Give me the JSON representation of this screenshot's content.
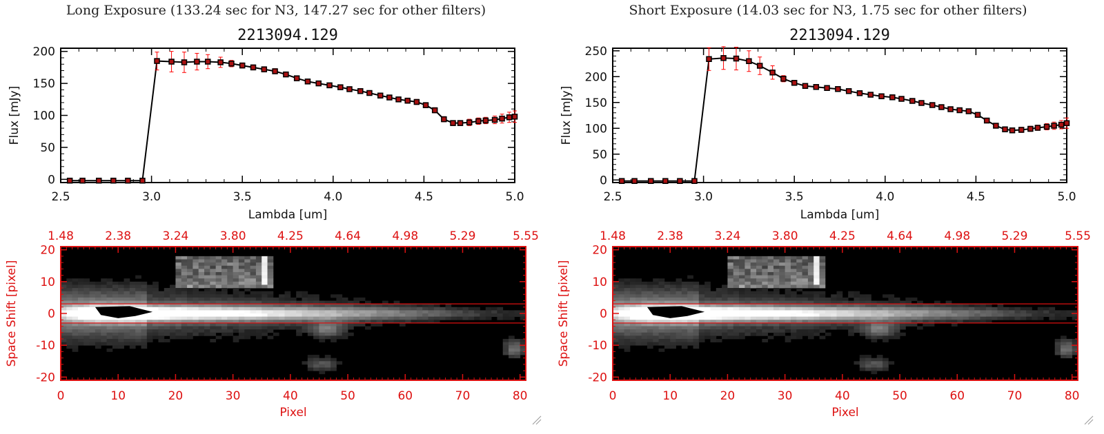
{
  "panels": [
    {
      "exposure_title": "Long Exposure (133.24 sec for N3, 147.27 sec for other filters)",
      "spectrum": {
        "type": "line",
        "title": "2213094.129",
        "xlabel": "Lambda [um]",
        "ylabel": "Flux [mJy]",
        "xlim": [
          2.5,
          5.0
        ],
        "ylim": [
          -5,
          205
        ],
        "xticks": [
          "2.5",
          "3.0",
          "3.5",
          "4.0",
          "4.5",
          "5.0"
        ],
        "yticks": [
          "0",
          "50",
          "100",
          "150",
          "200"
        ],
        "x": [
          2.55,
          2.62,
          2.71,
          2.79,
          2.87,
          2.95,
          3.03,
          3.11,
          3.18,
          3.25,
          3.31,
          3.38,
          3.44,
          3.5,
          3.56,
          3.62,
          3.68,
          3.74,
          3.8,
          3.86,
          3.92,
          3.98,
          4.04,
          4.09,
          4.15,
          4.2,
          4.26,
          4.31,
          4.36,
          4.41,
          4.46,
          4.51,
          4.56,
          4.61,
          4.66,
          4.7,
          4.75,
          4.8,
          4.84,
          4.89,
          4.93,
          4.97,
          5.0
        ],
        "y": [
          -2,
          -2,
          -2,
          -2,
          -2,
          -2,
          185,
          184,
          183,
          184,
          184,
          183,
          181,
          178,
          175,
          172,
          169,
          164,
          158,
          153,
          150,
          147,
          144,
          141,
          138,
          135,
          131,
          128,
          125,
          123,
          121,
          116,
          108,
          94,
          88,
          88,
          89,
          91,
          92,
          93,
          95,
          97,
          98
        ],
        "yerr": [
          0,
          0,
          0,
          0,
          0,
          0,
          14,
          16,
          16,
          13,
          11,
          8,
          5,
          4,
          4,
          4,
          4,
          3,
          3,
          3,
          3,
          3,
          3,
          3,
          3,
          3,
          3,
          3,
          3,
          4,
          4,
          4,
          4,
          4,
          4,
          4,
          5,
          5,
          5,
          6,
          7,
          8,
          9
        ]
      },
      "image": {
        "type": "heatmap",
        "xlabel": "Pixel",
        "ylabel": "Space Shift [pixel]",
        "xticks": [
          "0",
          "10",
          "20",
          "30",
          "40",
          "50",
          "60",
          "70",
          "80"
        ],
        "yticks": [
          "20",
          "10",
          "0",
          "-10",
          "-20"
        ],
        "top_ticks": [
          "1.48",
          "2.38",
          "3.24",
          "3.80",
          "4.25",
          "4.64",
          "4.98",
          "5.29",
          "5.55"
        ],
        "xlim": [
          0,
          81
        ],
        "ylim": [
          -21,
          21
        ],
        "hlines": [
          3,
          -3
        ]
      }
    },
    {
      "exposure_title": "Short Exposure (14.03 sec for N3, 1.75 sec for other filters)",
      "spectrum": {
        "type": "line",
        "title": "2213094.129",
        "xlabel": "Lambda [um]",
        "ylabel": "Flux [mJy]",
        "xlim": [
          2.5,
          5.0
        ],
        "ylim": [
          -5,
          255
        ],
        "xticks": [
          "2.5",
          "3.0",
          "3.5",
          "4.0",
          "4.5",
          "5.0"
        ],
        "yticks": [
          "0",
          "50",
          "100",
          "150",
          "200",
          "250"
        ],
        "x": [
          2.55,
          2.62,
          2.71,
          2.79,
          2.87,
          2.95,
          3.03,
          3.11,
          3.18,
          3.25,
          3.31,
          3.38,
          3.44,
          3.5,
          3.56,
          3.62,
          3.68,
          3.74,
          3.8,
          3.86,
          3.92,
          3.98,
          4.04,
          4.09,
          4.15,
          4.2,
          4.26,
          4.31,
          4.36,
          4.41,
          4.46,
          4.51,
          4.56,
          4.61,
          4.66,
          4.7,
          4.75,
          4.8,
          4.84,
          4.89,
          4.93,
          4.97,
          5.0
        ],
        "y": [
          -2,
          -2,
          -2,
          -2,
          -2,
          -2,
          234,
          236,
          235,
          230,
          221,
          208,
          196,
          188,
          182,
          180,
          178,
          176,
          172,
          168,
          165,
          162,
          160,
          157,
          153,
          149,
          145,
          141,
          137,
          135,
          133,
          126,
          115,
          105,
          98,
          96,
          97,
          99,
          101,
          103,
          105,
          107,
          110
        ],
        "yerr": [
          0,
          0,
          0,
          0,
          0,
          0,
          22,
          22,
          22,
          20,
          17,
          13,
          6,
          5,
          5,
          4,
          4,
          4,
          4,
          4,
          4,
          4,
          4,
          4,
          4,
          4,
          4,
          4,
          4,
          4,
          4,
          4,
          4,
          4,
          4,
          4,
          5,
          5,
          5,
          6,
          7,
          8,
          10
        ]
      },
      "image": {
        "type": "heatmap",
        "xlabel": "Pixel",
        "ylabel": "Space Shift [pixel]",
        "xticks": [
          "0",
          "10",
          "20",
          "30",
          "40",
          "50",
          "60",
          "70",
          "80"
        ],
        "yticks": [
          "20",
          "10",
          "0",
          "-10",
          "-20"
        ],
        "top_ticks": [
          "1.48",
          "2.38",
          "3.24",
          "3.80",
          "4.25",
          "4.64",
          "4.98",
          "5.29",
          "5.55"
        ],
        "xlim": [
          0,
          81
        ],
        "ylim": [
          -21,
          21
        ],
        "hlines": [
          3,
          -3
        ]
      }
    }
  ],
  "colors": {
    "axis": "#000000",
    "error_bar": "#ff0000",
    "marker_fill": "#aa1111",
    "image_axis": "#dd1111",
    "background": "#ffffff"
  }
}
